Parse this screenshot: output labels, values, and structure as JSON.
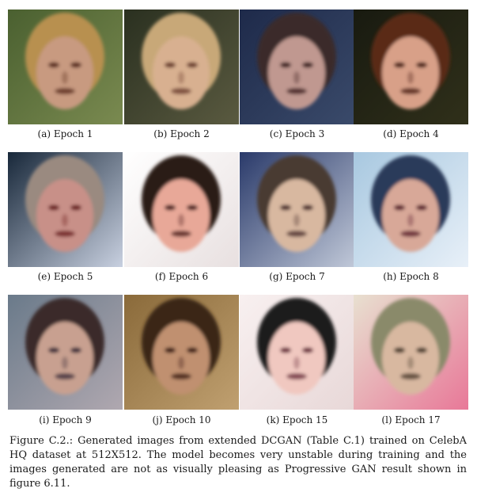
{
  "subfigures": [
    {
      "label": "(a) Epoch 1",
      "palette": {
        "bg1": "#4a6030",
        "bg2": "#7a8a50",
        "hair": "#b89050",
        "skin": "#c89a80",
        "feat": "#5a2a1a"
      }
    },
    {
      "label": "(b) Epoch 2",
      "palette": {
        "bg1": "#2a3020",
        "bg2": "#5a5a40",
        "hair": "#c8a878",
        "skin": "#d8b090",
        "feat": "#6a3a2a"
      }
    },
    {
      "label": "(c) Epoch 3",
      "palette": {
        "bg1": "#1e2a4a",
        "bg2": "#3a4a6a",
        "hair": "#3a2a2a",
        "skin": "#c09890",
        "feat": "#3a1a1a"
      }
    },
    {
      "label": "(d) Epoch 4",
      "palette": {
        "bg1": "#181a10",
        "bg2": "#30301a",
        "hair": "#5a2a18",
        "skin": "#d8a088",
        "feat": "#4a1a10"
      }
    },
    {
      "label": "(e) Epoch 5",
      "palette": {
        "bg1": "#18283a",
        "bg2": "#c8d0e0",
        "hair": "#9a8a80",
        "skin": "#c89088",
        "feat": "#6a1a1a"
      }
    },
    {
      "label": "(f) Epoch 6",
      "palette": {
        "bg1": "#ffffff",
        "bg2": "#e8e0e0",
        "hair": "#2a1a18",
        "skin": "#e8a898",
        "feat": "#4a1a1a"
      }
    },
    {
      "label": "(g) Epoch 7",
      "palette": {
        "bg1": "#2a3a6a",
        "bg2": "#c0c8d8",
        "hair": "#4a3a30",
        "skin": "#d8b8a0",
        "feat": "#4a2a2a"
      }
    },
    {
      "label": "(h) Epoch 8",
      "palette": {
        "bg1": "#a8c8e0",
        "bg2": "#e8f0f8",
        "hair": "#2a3a5a",
        "skin": "#d8a898",
        "feat": "#5a1a2a"
      }
    },
    {
      "label": "(i) Epoch 9",
      "palette": {
        "bg1": "#6a7a8a",
        "bg2": "#b0a8b0",
        "hair": "#3a2a2a",
        "skin": "#c8a090",
        "feat": "#3a2a3a"
      }
    },
    {
      "label": "(j) Epoch 10",
      "palette": {
        "bg1": "#8a6a3a",
        "bg2": "#c0a070",
        "hair": "#3a2818",
        "skin": "#c09070",
        "feat": "#3a1810"
      }
    },
    {
      "label": "(k) Epoch 15",
      "palette": {
        "bg1": "#f8f0f0",
        "bg2": "#e8d8d8",
        "hair": "#1a1a1a",
        "skin": "#f0c8c0",
        "feat": "#6a2a3a"
      }
    },
    {
      "label": "(l) Epoch 17",
      "palette": {
        "bg1": "#e8e0d0",
        "bg2": "#e87898",
        "hair": "#8a8a6a",
        "skin": "#d8b8a0",
        "feat": "#4a3a2a"
      }
    }
  ],
  "caption": "Figure C.2.: Generated images from extended DCGAN (Table C.1) trained on CelebA HQ dataset at 512X512. The model becomes very unstable during training and the images generated are not as visually pleasing as Progressive GAN result shown in figure 6.11."
}
